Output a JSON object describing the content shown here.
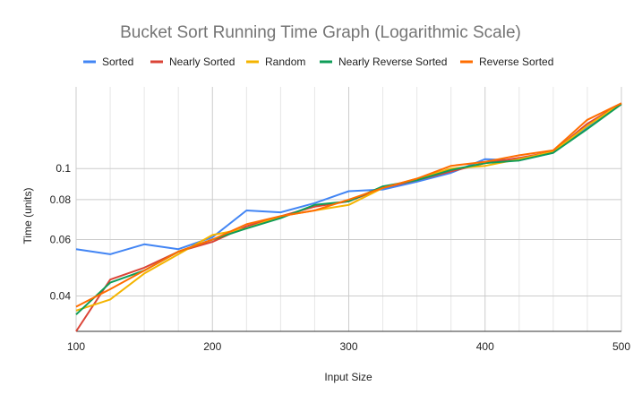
{
  "chart_data": {
    "type": "line",
    "title": "Bucket Sort Running Time Graph (Logarithmic Scale)",
    "xlabel": "Input Size",
    "ylabel": "Time (units)",
    "y_scale": "log",
    "xlim": [
      100,
      500
    ],
    "ylim": [
      0.031,
      0.18
    ],
    "x_ticks": [
      "100",
      "200",
      "300",
      "400",
      "500"
    ],
    "y_ticks": [
      "0.04",
      "0.06",
      "0.08",
      "0.1"
    ],
    "grid": true,
    "legend_position": "top",
    "x": [
      100,
      125,
      150,
      175,
      200,
      225,
      250,
      275,
      300,
      325,
      350,
      375,
      400,
      425,
      450,
      475,
      500
    ],
    "series": [
      {
        "name": "Sorted",
        "color": "#4285f4",
        "values": [
          0.056,
          0.054,
          0.058,
          0.056,
          0.061,
          0.074,
          0.073,
          0.078,
          0.085,
          0.086,
          0.091,
          0.097,
          0.107,
          0.106,
          0.112,
          0.135,
          0.16
        ]
      },
      {
        "name": "Nearly Sorted",
        "color": "#db4437",
        "values": [
          0.031,
          0.045,
          0.049,
          0.055,
          0.059,
          0.066,
          0.071,
          0.076,
          0.079,
          0.087,
          0.092,
          0.098,
          0.104,
          0.108,
          0.113,
          0.138,
          0.16
        ]
      },
      {
        "name": "Random",
        "color": "#f4b400",
        "values": [
          0.036,
          0.039,
          0.047,
          0.054,
          0.062,
          0.065,
          0.071,
          0.074,
          0.077,
          0.087,
          0.093,
          0.1,
          0.102,
          0.107,
          0.113,
          0.136,
          0.16
        ]
      },
      {
        "name": "Nearly Reverse Sorted",
        "color": "#0f9d58",
        "values": [
          0.035,
          0.044,
          0.048,
          0.055,
          0.06,
          0.065,
          0.07,
          0.077,
          0.079,
          0.088,
          0.092,
          0.099,
          0.104,
          0.106,
          0.112,
          0.133,
          0.159
        ]
      },
      {
        "name": "Reverse Sorted",
        "color": "#ff6d00",
        "values": [
          0.037,
          0.042,
          0.048,
          0.055,
          0.06,
          0.067,
          0.071,
          0.074,
          0.08,
          0.087,
          0.093,
          0.102,
          0.105,
          0.11,
          0.114,
          0.142,
          0.16
        ]
      }
    ]
  }
}
